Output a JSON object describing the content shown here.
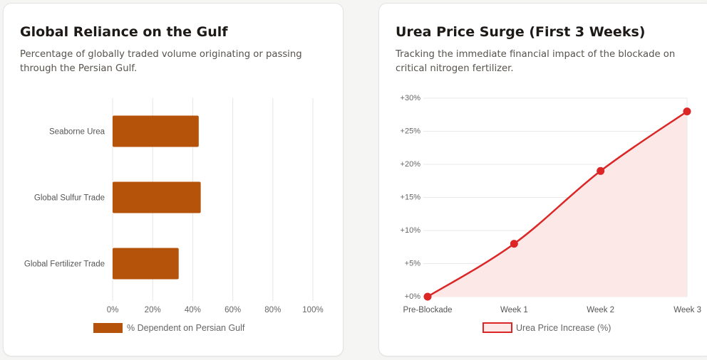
{
  "left_card": {
    "title": "Global Reliance on the Gulf",
    "subtitle": "Percentage of globally traded volume originating or passing through the Persian Gulf."
  },
  "right_card": {
    "title": "Urea Price Surge (First 3 Weeks)",
    "subtitle": "Tracking the immediate financial impact of the blockade on critical nitrogen fertilizer."
  },
  "chart_data": [
    {
      "type": "bar",
      "orientation": "horizontal",
      "categories": [
        "Seaborne Urea",
        "Global Sulfur Trade",
        "Global Fertilizer Trade"
      ],
      "series": [
        {
          "name": "% Dependent on Persian Gulf",
          "values": [
            43,
            44,
            33
          ],
          "color": "#b45309"
        }
      ],
      "xlim": [
        0,
        100
      ],
      "x_ticks": [
        "0%",
        "20%",
        "40%",
        "60%",
        "80%",
        "100%"
      ],
      "grid": true,
      "legend_position": "bottom"
    },
    {
      "type": "area",
      "categories": [
        "Pre-Blockade",
        "Week 1",
        "Week 2",
        "Week 3"
      ],
      "series": [
        {
          "name": "Urea Price Increase (%)",
          "values": [
            0,
            8,
            19,
            28
          ],
          "color": "#dc2626",
          "fill": "#fde8e8"
        }
      ],
      "ylim": [
        0,
        30
      ],
      "y_ticks": [
        "+0%",
        "+5%",
        "+10%",
        "+15%",
        "+20%",
        "+25%",
        "+30%"
      ],
      "grid": true,
      "legend_position": "bottom"
    }
  ]
}
